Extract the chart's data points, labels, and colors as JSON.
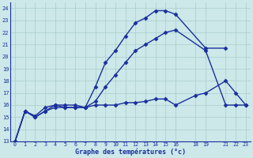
{
  "title": "Graphe des températures (°c)",
  "bg_color": "#cce8e8",
  "line_color": "#1a2f9e",
  "grid_color": "#aacccc",
  "ylim": [
    13,
    24.5
  ],
  "xlim": [
    -0.5,
    23.5
  ],
  "yticks": [
    13,
    14,
    15,
    16,
    17,
    18,
    19,
    20,
    21,
    22,
    23,
    24
  ],
  "xtick_positions": [
    0,
    1,
    2,
    3,
    4,
    5,
    6,
    7,
    8,
    9,
    10,
    11,
    12,
    13,
    14,
    15,
    16,
    18,
    19,
    21,
    22,
    23
  ],
  "xtick_labels": [
    "0",
    "1",
    "2",
    "3",
    "4",
    "5",
    "6",
    "7",
    "8",
    "9",
    "10",
    "11",
    "12",
    "13",
    "14",
    "15",
    "16",
    "18",
    "19",
    "21",
    "22",
    "23"
  ],
  "series": [
    {
      "x": [
        0,
        1,
        2,
        3,
        4,
        5,
        6,
        7,
        8,
        9,
        10,
        11,
        12,
        13,
        14,
        15,
        16,
        19,
        21
      ],
      "y": [
        13.0,
        15.5,
        15.1,
        15.8,
        16.0,
        16.0,
        16.0,
        15.8,
        17.5,
        19.5,
        20.5,
        21.7,
        22.8,
        23.2,
        23.8,
        23.8,
        23.5,
        20.7,
        20.7
      ],
      "marker": "D",
      "markersize": 2.5,
      "linewidth": 1.0
    },
    {
      "x": [
        0,
        1,
        2,
        3,
        4,
        5,
        6,
        7,
        8,
        9,
        10,
        11,
        12,
        13,
        14,
        15,
        16,
        19,
        21,
        22,
        23
      ],
      "y": [
        13.0,
        15.5,
        15.0,
        15.5,
        15.8,
        15.8,
        15.8,
        15.8,
        16.3,
        17.5,
        18.5,
        19.5,
        20.5,
        21.0,
        21.5,
        22.0,
        22.2,
        20.5,
        16.0,
        16.0,
        16.0
      ],
      "marker": "D",
      "markersize": 2.5,
      "linewidth": 1.0
    },
    {
      "x": [
        0,
        1,
        2,
        3,
        4,
        5,
        6,
        7,
        8,
        9,
        10,
        11,
        12,
        13,
        14,
        15,
        16,
        18,
        19,
        21,
        22,
        23
      ],
      "y": [
        13.0,
        15.5,
        15.0,
        15.5,
        16.0,
        15.8,
        15.8,
        15.8,
        16.0,
        16.0,
        16.0,
        16.2,
        16.2,
        16.3,
        16.5,
        16.5,
        16.0,
        16.8,
        17.0,
        18.0,
        17.0,
        16.0
      ],
      "marker": "D",
      "markersize": 2.5,
      "linewidth": 1.0
    }
  ]
}
